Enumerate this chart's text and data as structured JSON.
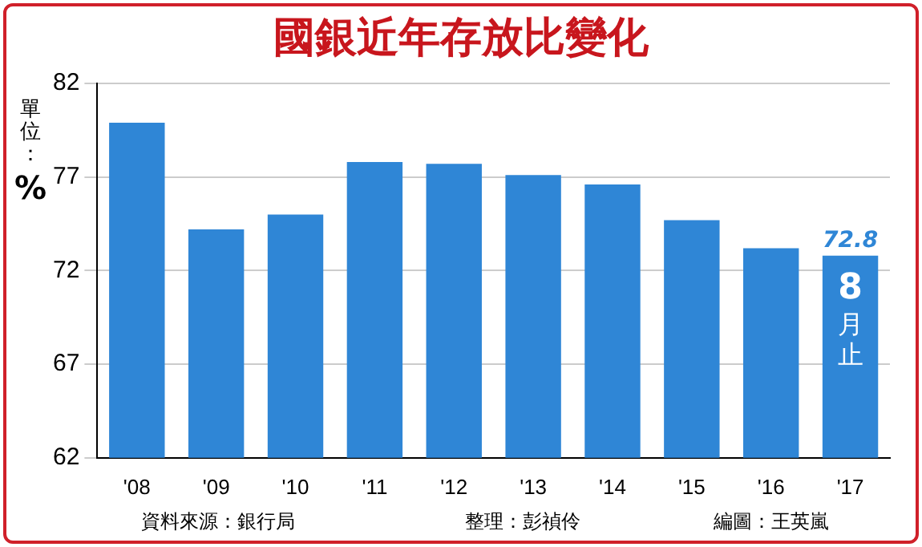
{
  "chart_data": {
    "type": "bar",
    "title": "國銀近年存放比變化",
    "ylabel": "單位：%",
    "categories": [
      "'08",
      "'09",
      "'10",
      "'11",
      "'12",
      "'13",
      "'14",
      "'15",
      "'16",
      "'17"
    ],
    "values": [
      79.9,
      74.2,
      75.0,
      77.8,
      77.7,
      77.1,
      76.6,
      74.7,
      73.2,
      72.8
    ],
    "value_labels": [
      null,
      null,
      null,
      null,
      null,
      null,
      null,
      null,
      null,
      "72.8"
    ],
    "color": "#2f86d6",
    "ylim": [
      62,
      82
    ],
    "yticks": [
      62,
      67,
      72,
      77,
      82
    ],
    "grid": "y",
    "annotations": [
      "8月止",
      "資料來源：銀行局",
      "整理：彭禎伶",
      "編圖：王英嵐"
    ]
  }
}
